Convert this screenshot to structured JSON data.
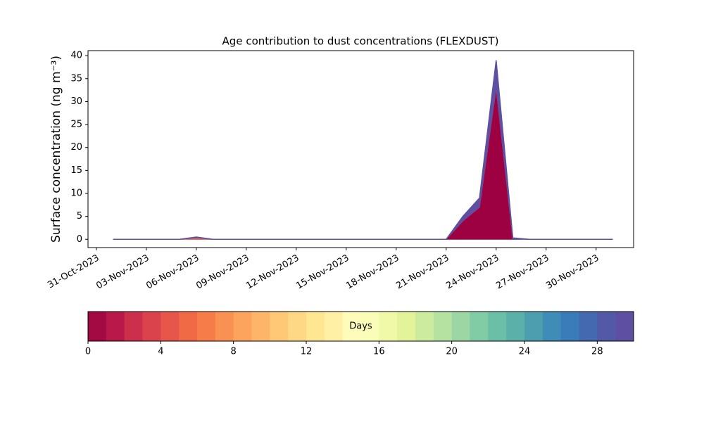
{
  "chart_data": {
    "type": "stacked_area",
    "title": "Age contribution to dust concentrations (FLEXDUST)",
    "ylabel": "Surface concentration (ng m⁻³)",
    "x": [
      "2023-11-01",
      "2023-11-02",
      "2023-11-03",
      "2023-11-04",
      "2023-11-05",
      "2023-11-06",
      "2023-11-07",
      "2023-11-08",
      "2023-11-09",
      "2023-11-10",
      "2023-11-11",
      "2023-11-12",
      "2023-11-13",
      "2023-11-14",
      "2023-11-15",
      "2023-11-16",
      "2023-11-17",
      "2023-11-18",
      "2023-11-19",
      "2023-11-20",
      "2023-11-21",
      "2023-11-22",
      "2023-11-23",
      "2023-11-24",
      "2023-11-25",
      "2023-11-26",
      "2023-11-27",
      "2023-11-28",
      "2023-11-29",
      "2023-11-30",
      "2023-12-01"
    ],
    "series": [
      {
        "color": "#9e0142",
        "values": [
          0,
          0,
          0,
          0,
          0,
          0,
          0,
          0,
          0,
          0,
          0,
          0,
          0,
          0,
          0,
          0,
          0,
          0,
          0,
          0,
          0,
          4,
          7,
          33,
          0,
          0,
          0,
          0,
          0,
          0,
          0
        ]
      },
      {
        "color": "#f46d43",
        "values": [
          0,
          0,
          0,
          0,
          0,
          0.3,
          0,
          0,
          0,
          0,
          0,
          0,
          0,
          0,
          0,
          0,
          0,
          0,
          0,
          0,
          0,
          0,
          0,
          0,
          0,
          0,
          0,
          0,
          0,
          0,
          0
        ]
      },
      {
        "color": "#5e4fa2",
        "values": [
          0,
          0,
          0,
          0,
          0,
          0.2,
          0,
          0,
          0,
          0,
          0,
          0,
          0,
          0,
          0,
          0,
          0,
          0,
          0,
          0,
          0,
          1,
          2,
          6,
          0.3,
          0,
          0,
          0,
          0,
          0,
          0
        ]
      }
    ],
    "xlim": [
      "2023-10-30T12:00",
      "2023-12-02T06:00"
    ],
    "xticks": [
      {
        "value": "2023-10-31",
        "label": "31-Oct-2023"
      },
      {
        "value": "2023-11-03",
        "label": "03-Nov-2023"
      },
      {
        "value": "2023-11-06",
        "label": "06-Nov-2023"
      },
      {
        "value": "2023-11-09",
        "label": "09-Nov-2023"
      },
      {
        "value": "2023-11-12",
        "label": "12-Nov-2023"
      },
      {
        "value": "2023-11-15",
        "label": "15-Nov-2023"
      },
      {
        "value": "2023-11-18",
        "label": "18-Nov-2023"
      },
      {
        "value": "2023-11-21",
        "label": "21-Nov-2023"
      },
      {
        "value": "2023-11-24",
        "label": "24-Nov-2023"
      },
      {
        "value": "2023-11-27",
        "label": "27-Nov-2023"
      },
      {
        "value": "2023-11-30",
        "label": "30-Nov-2023"
      }
    ],
    "ylim": [
      -1.8,
      41.1
    ],
    "yticks": [
      0,
      5,
      10,
      15,
      20,
      25,
      30,
      35,
      40
    ],
    "colorbar": {
      "label": "Days",
      "lim": [
        0,
        30
      ],
      "ticks": [
        0,
        4,
        8,
        12,
        16,
        20,
        24,
        28
      ],
      "colors": [
        "#a30a44",
        "#b8194a",
        "#cc2f4c",
        "#db434c",
        "#e6564a",
        "#f06a45",
        "#f67d4a",
        "#f99153",
        "#fca35d",
        "#fdb669",
        "#fec877",
        "#fed885",
        "#fee692",
        "#fff0a5",
        "#fffbb9",
        "#fafdb7",
        "#eff9a8",
        "#e2f39a",
        "#cdeb9e",
        "#b5e1a1",
        "#9cd6a4",
        "#81cba5",
        "#6bbfa6",
        "#5cb0aa",
        "#4d9faf",
        "#3f8db7",
        "#3a7cb9",
        "#4569b0",
        "#5259a6",
        "#5e4fa2"
      ]
    }
  }
}
